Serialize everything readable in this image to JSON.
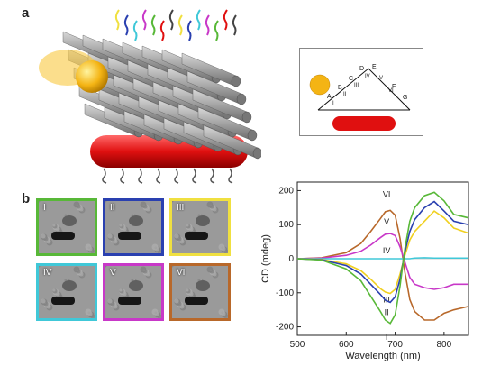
{
  "panels": {
    "a": "a",
    "b": "b"
  },
  "schematic": {
    "letters": [
      "A",
      "B",
      "C",
      "D",
      "E",
      "F",
      "G"
    ],
    "numerals": [
      "I",
      "II",
      "III",
      "IV",
      "V",
      "VI"
    ],
    "colors": {
      "sphere": "#f4b414",
      "rod": "#e01010"
    }
  },
  "tem_tiles": [
    {
      "label": "I",
      "border": "#58b838"
    },
    {
      "label": "II",
      "border": "#2a40b0"
    },
    {
      "label": "III",
      "border": "#f0e040"
    },
    {
      "label": "IV",
      "border": "#40c8d8"
    },
    {
      "label": "V",
      "border": "#c838c8"
    },
    {
      "label": "VI",
      "border": "#b8682a"
    }
  ],
  "chart_data": {
    "type": "line",
    "xlabel": "Wavelength (nm)",
    "ylabel": "CD (mdeg)",
    "xlim": [
      500,
      850
    ],
    "ylim": [
      -225,
      225
    ],
    "xticks": [
      500,
      600,
      700,
      800
    ],
    "yticks": [
      200,
      100,
      0,
      -100,
      -200
    ],
    "x": [
      500,
      550,
      600,
      630,
      650,
      670,
      680,
      690,
      700,
      710,
      720,
      730,
      740,
      760,
      780,
      800,
      820,
      850
    ],
    "series": [
      {
        "name": "VI",
        "color": "#b8682a",
        "values": [
          0,
          3,
          18,
          45,
          80,
          118,
          138,
          142,
          128,
          60,
          -40,
          -120,
          -155,
          -180,
          -180,
          -160,
          -150,
          -140
        ]
      },
      {
        "name": "V",
        "color": "#c838c8",
        "values": [
          0,
          2,
          10,
          22,
          40,
          62,
          72,
          74,
          68,
          35,
          -10,
          -55,
          -75,
          -85,
          -90,
          -85,
          -75,
          -75
        ]
      },
      {
        "name": "IV",
        "color": "#40c8d8",
        "values": [
          0,
          0,
          0,
          0,
          0,
          0,
          0,
          0,
          0,
          0,
          0,
          0,
          2,
          3,
          2,
          2,
          2,
          2
        ]
      },
      {
        "name": "III",
        "color": "#f0d020",
        "values": [
          0,
          -2,
          -15,
          -35,
          -60,
          -88,
          -98,
          -102,
          -90,
          -45,
          10,
          55,
          80,
          110,
          140,
          120,
          90,
          75
        ]
      },
      {
        "name": "II",
        "color": "#2a40b0",
        "values": [
          0,
          -3,
          -20,
          -45,
          -75,
          -105,
          -122,
          -128,
          -112,
          -60,
          20,
          80,
          115,
          150,
          168,
          140,
          110,
          100
        ]
      },
      {
        "name": "I",
        "color": "#58b838",
        "values": [
          0,
          -4,
          -30,
          -65,
          -110,
          -155,
          -180,
          -190,
          -165,
          -80,
          30,
          110,
          150,
          185,
          195,
          170,
          130,
          120
        ]
      }
    ],
    "annotations": [
      "VI",
      "V",
      "IV",
      "III",
      "II",
      "I"
    ]
  }
}
